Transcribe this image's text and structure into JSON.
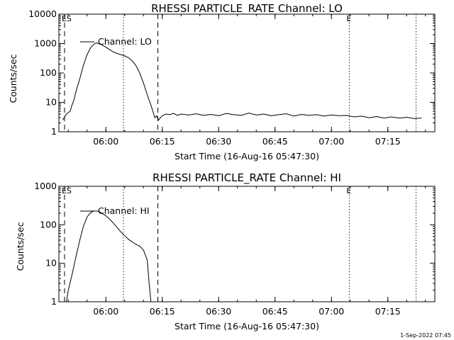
{
  "footer": "1-Sep-2022 07:45",
  "chart_data": [
    {
      "type": "line",
      "title": "RHESSI PARTICLE_RATE Channel: LO",
      "ylabel": "Counts/sec",
      "xlabel": "Start Time (16-Aug-16 05:47:30)",
      "y_scale": "log",
      "ylim": [
        1,
        10000
      ],
      "xlim": [
        "05:47:30",
        "07:27:30"
      ],
      "y_ticks": [
        {
          "value": 1,
          "label": "1"
        },
        {
          "value": 10,
          "label": "10"
        },
        {
          "value": 100,
          "label": "100"
        },
        {
          "value": 1000,
          "label": "1000"
        },
        {
          "value": 10000,
          "label": "10000"
        }
      ],
      "x_ticks": [
        "06:00",
        "06:15",
        "06:30",
        "06:45",
        "07:00",
        "07:15"
      ],
      "legend": {
        "label": "Channel: LO",
        "placement": "top-left"
      },
      "markers": [
        {
          "time": "05:49:00",
          "style": "dashed",
          "label": "ES"
        },
        {
          "time": "06:04:40",
          "style": "dotted",
          "label": ""
        },
        {
          "time": "06:13:50",
          "style": "dashed",
          "label": ""
        },
        {
          "time": "07:04:45",
          "style": "dotted",
          "label": "E"
        },
        {
          "time": "07:22:30",
          "style": "dotted",
          "label": ""
        }
      ],
      "series": [
        {
          "name": "Channel: LO",
          "x": [
            "05:48:30",
            "05:49:30",
            "05:50:30",
            "05:51:00",
            "05:51:30",
            "05:52:00",
            "05:53:00",
            "05:54:00",
            "05:55:00",
            "05:56:00",
            "05:57:00",
            "05:57:30",
            "05:58:00",
            "05:59:00",
            "06:00:00",
            "06:01:00",
            "06:02:00",
            "06:03:00",
            "06:04:00",
            "06:05:00",
            "06:06:00",
            "06:07:00",
            "06:08:00",
            "06:09:00",
            "06:10:00",
            "06:11:00",
            "06:12:00",
            "06:12:30",
            "06:13:00",
            "06:13:30",
            "06:14:00",
            "06:14:30",
            "06:15:00",
            "06:16:00",
            "06:17:00",
            "06:18:00",
            "06:19:00",
            "06:20:00",
            "06:22:00",
            "06:24:00",
            "06:26:00",
            "06:28:00",
            "06:30:00",
            "06:32:00",
            "06:34:00",
            "06:36:00",
            "06:38:00",
            "06:40:00",
            "06:42:00",
            "06:44:00",
            "06:46:00",
            "06:48:00",
            "06:50:00",
            "06:52:00",
            "06:54:00",
            "06:56:00",
            "06:58:00",
            "07:00:00",
            "07:02:00",
            "07:04:00",
            "07:06:00",
            "07:08:00",
            "07:10:00",
            "07:12:00",
            "07:14:00",
            "07:16:00",
            "07:18:00",
            "07:20:00",
            "07:22:00",
            "07:24:00"
          ],
          "y": [
            2.5,
            4,
            5,
            8,
            12,
            22,
            60,
            180,
            420,
            750,
            1000,
            1050,
            1000,
            900,
            750,
            620,
            520,
            460,
            420,
            380,
            330,
            260,
            180,
            100,
            45,
            18,
            8,
            5,
            3,
            3.5,
            2.5,
            3,
            3.5,
            4,
            3.8,
            4.2,
            3.6,
            4,
            3.7,
            4.1,
            3.6,
            3.9,
            3.5,
            4.2,
            3.8,
            3.6,
            4.3,
            3.7,
            4,
            3.5,
            3.8,
            4.1,
            3.4,
            3.9,
            3.6,
            3.8,
            3.4,
            3.7,
            3.5,
            3.6,
            3.2,
            3.4,
            3,
            3.3,
            2.9,
            3.2,
            2.9,
            3.1,
            2.8,
            2.9
          ]
        }
      ]
    },
    {
      "type": "line",
      "title": "RHESSI PARTICLE_RATE Channel: HI",
      "ylabel": "Counts/sec",
      "xlabel": "Start Time (16-Aug-16 05:47:30)",
      "y_scale": "log",
      "ylim": [
        1,
        1000
      ],
      "xlim": [
        "05:47:30",
        "07:27:30"
      ],
      "y_ticks": [
        {
          "value": 1,
          "label": "1"
        },
        {
          "value": 10,
          "label": "10"
        },
        {
          "value": 100,
          "label": "100"
        },
        {
          "value": 1000,
          "label": "1000"
        }
      ],
      "x_ticks": [
        "06:00",
        "06:15",
        "06:30",
        "06:45",
        "07:00",
        "07:15"
      ],
      "legend": {
        "label": "Channel: HI",
        "placement": "top-left"
      },
      "markers": [
        {
          "time": "05:49:00",
          "style": "dashed",
          "label": "ES"
        },
        {
          "time": "06:04:40",
          "style": "dotted",
          "label": ""
        },
        {
          "time": "06:13:50",
          "style": "dashed",
          "label": ""
        },
        {
          "time": "07:04:45",
          "style": "dotted",
          "label": "E"
        },
        {
          "time": "07:22:30",
          "style": "dotted",
          "label": ""
        }
      ],
      "series": [
        {
          "name": "Channel: HI",
          "x": [
            "05:49:30",
            "05:50:00",
            "05:51:00",
            "05:52:00",
            "05:53:00",
            "05:54:00",
            "05:55:00",
            "05:56:00",
            "05:57:00",
            "05:58:00",
            "05:59:00",
            "06:00:00",
            "06:01:00",
            "06:02:00",
            "06:03:00",
            "06:04:00",
            "06:05:00",
            "06:06:00",
            "06:07:00",
            "06:08:00",
            "06:09:00",
            "06:10:00",
            "06:11:00",
            "06:11:30",
            "06:12:00"
          ],
          "y": [
            1,
            2,
            5,
            14,
            38,
            90,
            160,
            210,
            230,
            225,
            200,
            170,
            140,
            110,
            85,
            65,
            52,
            42,
            36,
            31,
            28,
            22,
            12,
            3,
            1
          ]
        }
      ]
    }
  ]
}
